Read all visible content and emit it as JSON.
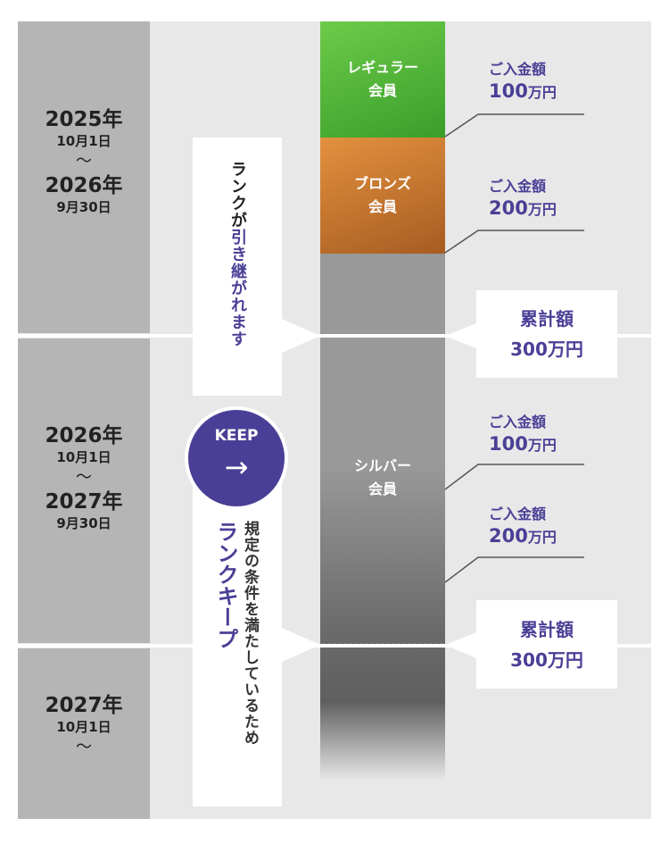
{
  "periods": [
    {
      "start_year": "2025年",
      "start_date": "10月1日",
      "tilde": "〜",
      "end_year": "2026年",
      "end_date": "9月30日"
    },
    {
      "start_year": "2026年",
      "start_date": "10月1日",
      "tilde": "〜",
      "end_year": "2027年",
      "end_date": "9月30日"
    },
    {
      "start_year": "2027年",
      "start_date": "10月1日",
      "tilde": "〜"
    }
  ],
  "tiers": {
    "regular": "レギュラー\n会員",
    "bronze": "ブロンズ\n会員",
    "silver": "シルバー\n会員"
  },
  "colors": {
    "accent": "#4a3f96",
    "regular": "#4db83a",
    "bronze": "#d9883c",
    "silver": "#999999"
  },
  "payments": [
    {
      "label": "ご入金額",
      "amount": "100",
      "unit": "万円"
    },
    {
      "label": "ご入金額",
      "amount": "200",
      "unit": "万円"
    },
    {
      "label": "ご入金額",
      "amount": "100",
      "unit": "万円"
    },
    {
      "label": "ご入金額",
      "amount": "200",
      "unit": "万円"
    }
  ],
  "totals": [
    {
      "label": "累計額",
      "amount": "300万円"
    },
    {
      "label": "累計額",
      "amount": "300万円"
    }
  ],
  "carry": {
    "prefix": "ランクが",
    "highlight": "引き継がれます"
  },
  "keep": {
    "badge": "KEEP",
    "arrow": "→",
    "title": "ランクキープ",
    "reason": "規定の条件を満たしているため"
  }
}
